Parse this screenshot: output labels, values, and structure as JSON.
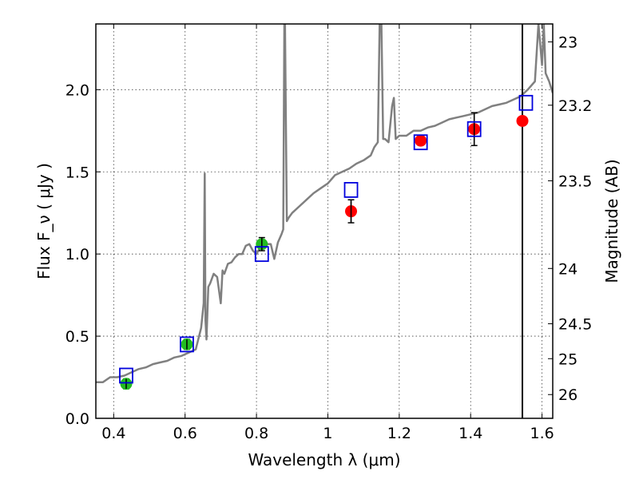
{
  "chart_data": {
    "type": "scatter",
    "title": "",
    "xlabel": "Wavelength  λ (μm)",
    "ylabel": "Flux  F_ν  ( μJy )",
    "y2label": "Magnitude (AB)",
    "xlim": [
      0.35,
      1.63
    ],
    "ylim": [
      0.0,
      2.4
    ],
    "grid": true,
    "x_ticks": [
      {
        "v": 0.4,
        "label": "0.4"
      },
      {
        "v": 0.6,
        "label": "0.6"
      },
      {
        "v": 0.8,
        "label": "0.8"
      },
      {
        "v": 1.0,
        "label": "1"
      },
      {
        "v": 1.2,
        "label": "1.2"
      },
      {
        "v": 1.4,
        "label": "1.4"
      },
      {
        "v": 1.6,
        "label": "1.6"
      }
    ],
    "y_ticks": [
      {
        "v": 0.0,
        "label": "0.0"
      },
      {
        "v": 0.5,
        "label": "0.5"
      },
      {
        "v": 1.0,
        "label": "1.0"
      },
      {
        "v": 1.5,
        "label": "1.5"
      },
      {
        "v": 2.0,
        "label": "2.0"
      }
    ],
    "mag_ticks": [
      {
        "mag": 23,
        "label": "23"
      },
      {
        "mag": 23.2,
        "label": "23.2"
      },
      {
        "mag": 23.5,
        "label": "23.5"
      },
      {
        "mag": 24,
        "label": "24"
      },
      {
        "mag": 24.5,
        "label": "24.5"
      },
      {
        "mag": 25,
        "label": "25"
      },
      {
        "mag": 26,
        "label": "26"
      }
    ],
    "vertical_line_x": 1.545,
    "series": [
      {
        "marker": "filled-circle",
        "color": "#22bb22",
        "points": [
          {
            "x": 0.435,
            "y": 0.21,
            "err": 0.03
          },
          {
            "x": 0.605,
            "y": 0.45,
            "err": 0.03
          },
          {
            "x": 0.815,
            "y": 1.06,
            "err": 0.04
          }
        ]
      },
      {
        "marker": "filled-circle",
        "color": "#ff0000",
        "points": [
          {
            "x": 1.065,
            "y": 1.26,
            "err": 0.07
          },
          {
            "x": 1.26,
            "y": 1.69,
            "err": 0.0
          },
          {
            "x": 1.41,
            "y": 1.76,
            "err": 0.1
          },
          {
            "x": 1.545,
            "y": 1.81,
            "err": 0.0
          }
        ]
      },
      {
        "marker": "open-square",
        "color": "#0000dd",
        "points": [
          {
            "x": 0.435,
            "y": 0.26
          },
          {
            "x": 0.605,
            "y": 0.45
          },
          {
            "x": 0.815,
            "y": 1.0
          },
          {
            "x": 1.065,
            "y": 1.39
          },
          {
            "x": 1.26,
            "y": 1.68
          },
          {
            "x": 1.41,
            "y": 1.76
          },
          {
            "x": 1.555,
            "y": 1.92
          }
        ]
      },
      {
        "line": "template-spectrum",
        "color": "#808080",
        "x": [
          0.35,
          0.37,
          0.39,
          0.41,
          0.43,
          0.45,
          0.47,
          0.49,
          0.51,
          0.53,
          0.55,
          0.57,
          0.59,
          0.61,
          0.63,
          0.645,
          0.652,
          0.655,
          0.657,
          0.66,
          0.665,
          0.67,
          0.68,
          0.69,
          0.7,
          0.705,
          0.71,
          0.72,
          0.73,
          0.74,
          0.75,
          0.76,
          0.77,
          0.78,
          0.79,
          0.8,
          0.81,
          0.82,
          0.83,
          0.84,
          0.85,
          0.86,
          0.87,
          0.875,
          0.878,
          0.88,
          0.885,
          0.89,
          0.9,
          0.92,
          0.94,
          0.96,
          0.98,
          1.0,
          1.02,
          1.04,
          1.06,
          1.08,
          1.1,
          1.12,
          1.13,
          1.14,
          1.145,
          1.15,
          1.155,
          1.16,
          1.17,
          1.18,
          1.185,
          1.19,
          1.2,
          1.22,
          1.24,
          1.26,
          1.28,
          1.3,
          1.32,
          1.34,
          1.36,
          1.38,
          1.4,
          1.42,
          1.44,
          1.46,
          1.48,
          1.5,
          1.52,
          1.54,
          1.56,
          1.58,
          1.59,
          1.6,
          1.605,
          1.61,
          1.62,
          1.63
        ],
        "y": [
          0.22,
          0.22,
          0.25,
          0.25,
          0.26,
          0.28,
          0.3,
          0.31,
          0.33,
          0.34,
          0.35,
          0.37,
          0.38,
          0.4,
          0.42,
          0.55,
          0.7,
          1.49,
          0.6,
          0.48,
          0.8,
          0.82,
          0.88,
          0.86,
          0.7,
          0.9,
          0.88,
          0.94,
          0.95,
          0.98,
          1.0,
          1.0,
          1.05,
          1.06,
          1.02,
          1.0,
          1.04,
          1.05,
          1.06,
          1.06,
          0.97,
          1.07,
          1.12,
          1.15,
          2.4,
          2.4,
          1.2,
          1.22,
          1.25,
          1.29,
          1.33,
          1.37,
          1.4,
          1.43,
          1.48,
          1.5,
          1.52,
          1.55,
          1.57,
          1.6,
          1.65,
          1.68,
          2.4,
          2.4,
          1.7,
          1.7,
          1.68,
          1.9,
          1.95,
          1.7,
          1.72,
          1.72,
          1.75,
          1.75,
          1.77,
          1.78,
          1.8,
          1.82,
          1.83,
          1.84,
          1.85,
          1.86,
          1.88,
          1.9,
          1.91,
          1.92,
          1.94,
          1.96,
          2.0,
          2.05,
          2.4,
          2.15,
          2.4,
          2.1,
          2.05,
          1.98
        ]
      }
    ]
  }
}
